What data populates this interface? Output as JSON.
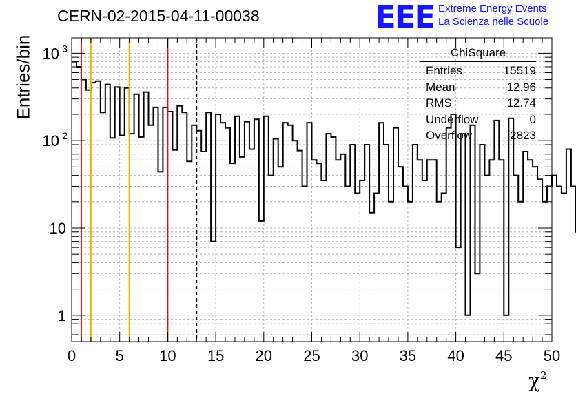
{
  "header": {
    "title": "CERN-02-2015-04-11-00038",
    "logo_mark": "EEE",
    "logo_line1": "Extreme Energy Events",
    "logo_line2": "La Scienza nelle Scuole"
  },
  "stats": {
    "title": "ChiSquare",
    "rows": [
      {
        "label": "Entries",
        "value": "15519"
      },
      {
        "label": "Mean",
        "value": "12.96"
      },
      {
        "label": "RMS",
        "value": "12.74"
      },
      {
        "label": "Underflow",
        "value": "0"
      },
      {
        "label": "Overflow",
        "value": "2823"
      }
    ]
  },
  "colors": {
    "histogram": "#000000",
    "red_line": "#e01010",
    "yellow_line": "#f0b400",
    "grid": "#b4b4b4",
    "logo": "#1515ff"
  },
  "chart_data": {
    "type": "bar",
    "title": "CERN-02-2015-04-11-00038",
    "xlabel": "χ",
    "xlabel_superscript": "2",
    "ylabel": "Entries/bin",
    "xlim": [
      0,
      50
    ],
    "ylim": [
      0.5,
      1500
    ],
    "yscale": "log",
    "grid": true,
    "x_ticks": [
      0,
      5,
      10,
      15,
      20,
      25,
      30,
      35,
      40,
      45,
      50
    ],
    "y_ticks": [
      {
        "value": 1,
        "label": "1"
      },
      {
        "value": 10,
        "label": "10"
      },
      {
        "value": 100,
        "label": "10",
        "exp": "2"
      },
      {
        "value": 1000,
        "label": "10",
        "exp": "3"
      }
    ],
    "bin_width": 0.5,
    "x_start": 0,
    "values": [
      800,
      700,
      500,
      380,
      460,
      480,
      210,
      440,
      107,
      410,
      115,
      400,
      120,
      340,
      110,
      360,
      150,
      240,
      44,
      240,
      215,
      78,
      250,
      210,
      58,
      150,
      130,
      75,
      210,
      7,
      200,
      160,
      140,
      55,
      190,
      65,
      165,
      80,
      175,
      12,
      190,
      40,
      105,
      50,
      160,
      150,
      100,
      77,
      30,
      160,
      60,
      55,
      35,
      120,
      110,
      60,
      70,
      30,
      90,
      25,
      35,
      90,
      15,
      25,
      160,
      90,
      20,
      140,
      50,
      30,
      20,
      90,
      60,
      35,
      60,
      60,
      20,
      25,
      140,
      200,
      6,
      120,
      1,
      150,
      3,
      90,
      40,
      60,
      170,
      60,
      1,
      180,
      40,
      20,
      75,
      60,
      50,
      36,
      20,
      30,
      40,
      30,
      25,
      80,
      30,
      9,
      20,
      200,
      45,
      60,
      38,
      70,
      3,
      30,
      23,
      50,
      20,
      20,
      15,
      9,
      20,
      25,
      52,
      55,
      80,
      40,
      20,
      15,
      40,
      25,
      20,
      15,
      5,
      20,
      25,
      50,
      35,
      20,
      50,
      40,
      30,
      20,
      10,
      20,
      30,
      50,
      60,
      40,
      20,
      10
    ],
    "vlines": [
      {
        "x": 1,
        "color": "red",
        "style": "solid"
      },
      {
        "x": 2,
        "color": "yellow",
        "style": "solid"
      },
      {
        "x": 6,
        "color": "yellow",
        "style": "solid"
      },
      {
        "x": 10,
        "color": "red",
        "style": "solid"
      },
      {
        "x": 13,
        "color": "black",
        "style": "dashed"
      }
    ],
    "legend": "top-right"
  }
}
